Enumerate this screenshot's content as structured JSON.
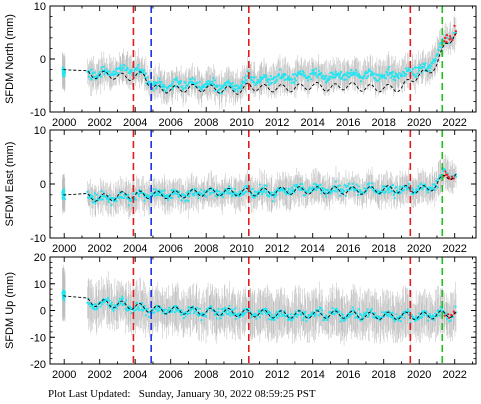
{
  "footer": {
    "label": "Plot Last Updated:",
    "timestamp": "Sunday, January 30, 2022 08:59:25 PST"
  },
  "colors": {
    "error_bars": "#bdbdbd",
    "data_points": "#22e5f2",
    "recent_points": "#ff1a1a",
    "model_line": "#000000",
    "event_red": "#e41a1c",
    "event_blue": "#1a33e8",
    "event_green": "#1ec21e"
  },
  "chart_data": [
    {
      "type": "scatter",
      "ylabel": "SFDM North (mm)",
      "xlim": [
        1999.2,
        2023.2
      ],
      "ylim": [
        -10,
        10
      ],
      "yticks": [
        -10,
        0,
        10
      ],
      "xticks": [
        2000,
        2002,
        2004,
        2006,
        2008,
        2010,
        2012,
        2014,
        2016,
        2018,
        2020,
        2022
      ],
      "grid": false,
      "series": [
        {
          "role": "daily_points_with_error_bars",
          "x": [
            2000.0,
            2001.5,
            2002.5,
            2003.5,
            2004.5,
            2005.0,
            2006.0,
            2007.0,
            2008.0,
            2009.0,
            2010.0,
            2010.4,
            2011.0,
            2012.0,
            2013.0,
            2014.0,
            2015.0,
            2016.0,
            2017.0,
            2018.0,
            2019.0,
            2019.5,
            2020.0,
            2020.5,
            2021.0,
            2021.5,
            2022.0
          ],
          "y": [
            -2.5,
            -3.0,
            -2.5,
            -2.0,
            -2.5,
            -5.0,
            -5.0,
            -4.5,
            -5.0,
            -5.0,
            -5.0,
            -3.5,
            -4.0,
            -3.5,
            -3.5,
            -3.0,
            -3.5,
            -3.0,
            -3.0,
            -3.0,
            -3.0,
            -2.5,
            -2.0,
            -2.0,
            1.0,
            4.0,
            5.0
          ]
        },
        {
          "role": "model_fit_dashed",
          "x": [
            2000.0,
            2001.5,
            2002.5,
            2003.5,
            2004.5,
            2005.0,
            2006.0,
            2007.0,
            2008.0,
            2009.0,
            2010.0,
            2010.4,
            2011.0,
            2012.0,
            2013.0,
            2014.0,
            2015.0,
            2016.0,
            2017.0,
            2018.0,
            2019.0,
            2019.5,
            2020.0,
            2020.5,
            2021.0,
            2021.5,
            2022.0
          ],
          "y": [
            -2.0,
            -3.0,
            -3.0,
            -3.5,
            -3.0,
            -5.5,
            -5.8,
            -5.5,
            -5.5,
            -5.8,
            -6.0,
            -5.0,
            -5.5,
            -5.5,
            -5.5,
            -5.0,
            -5.5,
            -5.0,
            -5.5,
            -5.5,
            -5.5,
            -4.0,
            -3.0,
            -2.5,
            -1.0,
            3.0,
            4.5
          ]
        }
      ],
      "events": [
        {
          "x": 2003.9,
          "color": "red"
        },
        {
          "x": 2004.9,
          "color": "blue"
        },
        {
          "x": 2010.4,
          "color": "red"
        },
        {
          "x": 2019.5,
          "color": "red"
        },
        {
          "x": 2021.3,
          "color": "green"
        }
      ]
    },
    {
      "type": "scatter",
      "ylabel": "SFDM East (mm)",
      "xlim": [
        1999.2,
        2023.2
      ],
      "ylim": [
        -10,
        10
      ],
      "yticks": [
        -10,
        0,
        10
      ],
      "xticks": [
        2000,
        2002,
        2004,
        2006,
        2008,
        2010,
        2012,
        2014,
        2016,
        2018,
        2020,
        2022
      ],
      "grid": false,
      "series": [
        {
          "role": "daily_points_with_error_bars",
          "x": [
            2000.0,
            2001.5,
            2002.5,
            2003.5,
            2004.5,
            2005.0,
            2006.0,
            2007.0,
            2008.0,
            2009.0,
            2010.0,
            2010.4,
            2011.0,
            2012.0,
            2013.0,
            2014.0,
            2015.0,
            2016.0,
            2017.0,
            2018.0,
            2019.0,
            2019.5,
            2020.0,
            2020.5,
            2021.0,
            2021.5,
            2022.0
          ],
          "y": [
            -2.0,
            -2.5,
            -2.5,
            -2.5,
            -2.0,
            -2.0,
            -2.0,
            -2.0,
            -1.5,
            -1.5,
            -1.5,
            -1.5,
            -1.5,
            -1.5,
            -1.0,
            -1.0,
            -1.0,
            -1.0,
            -1.0,
            -1.0,
            -1.0,
            -1.0,
            -1.0,
            -1.0,
            0.0,
            2.0,
            1.5
          ]
        },
        {
          "role": "model_fit_dashed",
          "x": [
            2000.0,
            2001.5,
            2002.5,
            2003.5,
            2004.5,
            2005.0,
            2006.0,
            2007.0,
            2008.0,
            2009.0,
            2010.0,
            2010.4,
            2011.0,
            2012.0,
            2013.0,
            2014.0,
            2015.0,
            2016.0,
            2017.0,
            2018.0,
            2019.0,
            2019.5,
            2020.0,
            2020.5,
            2021.0,
            2021.5,
            2022.0
          ],
          "y": [
            -2.0,
            -2.5,
            -2.5,
            -2.0,
            -2.0,
            -2.0,
            -2.0,
            -1.8,
            -1.5,
            -1.5,
            -1.5,
            -1.5,
            -1.5,
            -1.3,
            -1.2,
            -1.2,
            -1.2,
            -1.2,
            -1.2,
            -1.0,
            -1.0,
            -1.0,
            -1.0,
            -1.0,
            0.0,
            1.5,
            1.5
          ]
        }
      ],
      "events": [
        {
          "x": 2003.9,
          "color": "red"
        },
        {
          "x": 2004.9,
          "color": "blue"
        },
        {
          "x": 2010.4,
          "color": "red"
        },
        {
          "x": 2019.5,
          "color": "red"
        },
        {
          "x": 2021.3,
          "color": "green"
        }
      ]
    },
    {
      "type": "scatter",
      "ylabel": "SFDM Up (mm)",
      "xlim": [
        1999.2,
        2023.2
      ],
      "ylim": [
        -20,
        20
      ],
      "yticks": [
        -20,
        -10,
        0,
        10,
        20
      ],
      "xticks": [
        2000,
        2002,
        2004,
        2006,
        2008,
        2010,
        2012,
        2014,
        2016,
        2018,
        2020,
        2022
      ],
      "grid": false,
      "series": [
        {
          "role": "daily_points_with_error_bars",
          "x": [
            2000.0,
            2001.5,
            2002.5,
            2003.5,
            2004.5,
            2005.0,
            2006.0,
            2007.0,
            2008.0,
            2009.0,
            2010.0,
            2010.4,
            2011.0,
            2012.0,
            2013.0,
            2014.0,
            2015.0,
            2016.0,
            2017.0,
            2018.0,
            2019.0,
            2019.5,
            2020.0,
            2020.5,
            2021.0,
            2021.5,
            2022.0
          ],
          "y": [
            6.0,
            2.0,
            2.5,
            2.0,
            0.5,
            0.0,
            0.0,
            -0.5,
            -0.5,
            -0.5,
            -1.0,
            -1.0,
            -1.0,
            -1.5,
            -1.5,
            -1.5,
            -1.5,
            -1.5,
            -1.5,
            -2.0,
            -2.0,
            -2.0,
            -2.0,
            -2.0,
            -1.0,
            -2.0,
            -1.0
          ]
        },
        {
          "role": "model_fit_dashed",
          "x": [
            2000.0,
            2001.5,
            2002.5,
            2003.5,
            2004.5,
            2005.0,
            2006.0,
            2007.0,
            2008.0,
            2009.0,
            2010.0,
            2010.4,
            2011.0,
            2012.0,
            2013.0,
            2014.0,
            2015.0,
            2016.0,
            2017.0,
            2018.0,
            2019.0,
            2019.5,
            2020.0,
            2020.5,
            2021.0,
            2021.5,
            2022.0
          ],
          "y": [
            5.5,
            3.0,
            2.5,
            2.0,
            1.0,
            0.5,
            0.0,
            0.0,
            -0.5,
            -0.5,
            -1.0,
            -1.0,
            -1.0,
            -1.5,
            -1.5,
            -1.5,
            -1.5,
            -1.5,
            -2.0,
            -2.0,
            -2.0,
            -2.0,
            -2.0,
            -2.0,
            -1.5,
            -1.5,
            -1.0
          ]
        }
      ],
      "events": [
        {
          "x": 2003.9,
          "color": "red"
        },
        {
          "x": 2004.9,
          "color": "blue"
        },
        {
          "x": 2010.4,
          "color": "red"
        },
        {
          "x": 2019.5,
          "color": "red"
        },
        {
          "x": 2021.3,
          "color": "green"
        }
      ]
    }
  ]
}
